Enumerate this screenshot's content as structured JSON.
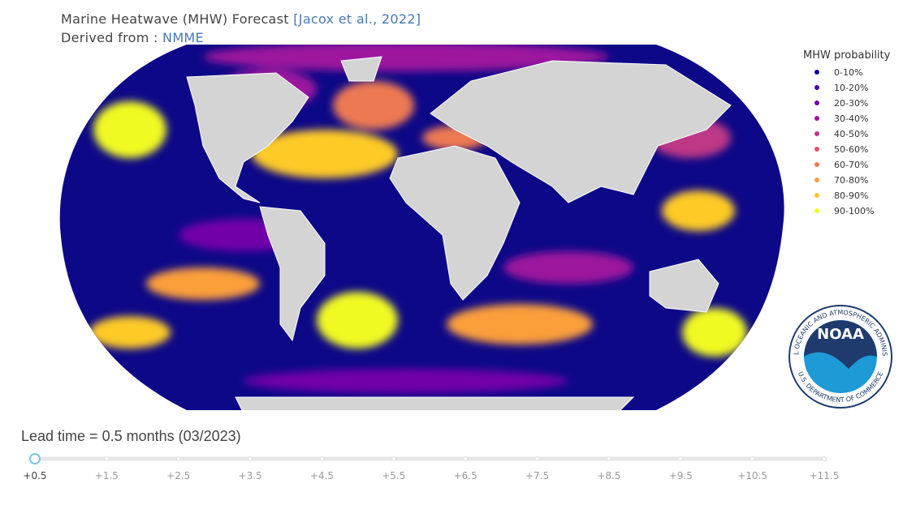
{
  "header": {
    "title": "Marine Heatwave (MHW) Forecast",
    "reference": "[Jacox et al., 2022]",
    "derived_prefix": "Derived from :",
    "derived_source": "NMME"
  },
  "legend": {
    "title": "MHW probability",
    "items": [
      {
        "label": "0-10%",
        "color": "#0d0887"
      },
      {
        "label": "10-20%",
        "color": "#46039f"
      },
      {
        "label": "20-30%",
        "color": "#7201a8"
      },
      {
        "label": "30-40%",
        "color": "#9c179e"
      },
      {
        "label": "40-50%",
        "color": "#bd3786"
      },
      {
        "label": "50-60%",
        "color": "#d8576b"
      },
      {
        "label": "60-70%",
        "color": "#ed7953"
      },
      {
        "label": "70-80%",
        "color": "#fb9f3a"
      },
      {
        "label": "80-90%",
        "color": "#fdca26"
      },
      {
        "label": "90-100%",
        "color": "#f0f921"
      }
    ]
  },
  "logo": {
    "name": "NOAA",
    "ring_top": "NATIONAL OCEANIC AND ATMOSPHERIC ADMINISTRATION",
    "ring_bottom": "U.S. DEPARTMENT OF COMMERCE"
  },
  "slider": {
    "label": "Lead time = 0.5 months (03/2023)",
    "steps": [
      "+0.5",
      "+1.5",
      "+2.5",
      "+3.5",
      "+4.5",
      "+5.5",
      "+6.5",
      "+7.5",
      "+8.5",
      "+9.5",
      "+10.5",
      "+11.5"
    ]
  }
}
